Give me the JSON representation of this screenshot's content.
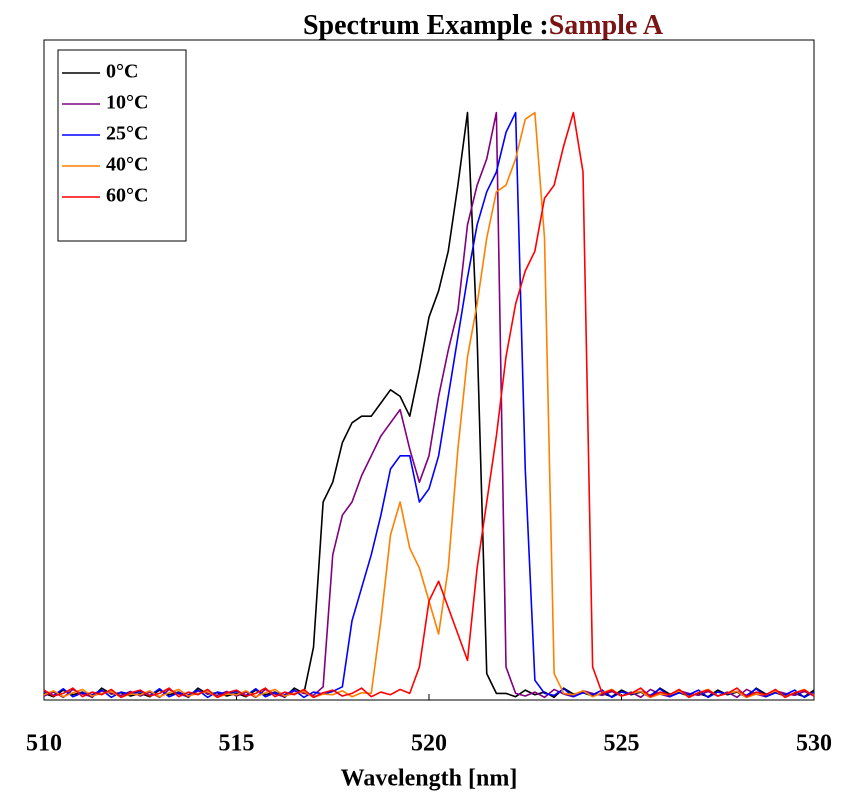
{
  "chart_data": {
    "type": "line",
    "title": "Spectrum Example :",
    "subtitle": "Sample A",
    "subtitle_color": "#7b1414",
    "xlabel": "Wavelength [nm]",
    "xlim": [
      510,
      530
    ],
    "xticks": [
      510,
      515,
      520,
      525,
      530
    ],
    "ylim": [
      0,
      1
    ],
    "legend": "upper left",
    "x": [
      510,
      510.25,
      510.5,
      510.75,
      511,
      511.25,
      511.5,
      511.75,
      512,
      512.25,
      512.5,
      512.75,
      513,
      513.25,
      513.5,
      513.75,
      514,
      514.25,
      514.5,
      514.75,
      515,
      515.25,
      515.5,
      515.75,
      516,
      516.25,
      516.5,
      516.75,
      517,
      517.25,
      517.5,
      517.75,
      518,
      518.25,
      518.5,
      518.75,
      519,
      519.25,
      519.5,
      519.75,
      520,
      520.25,
      520.5,
      520.75,
      521,
      521.25,
      521.5,
      521.75,
      522,
      522.25,
      522.5,
      522.75,
      523,
      523.25,
      523.5,
      523.75,
      524,
      524.25,
      524.5,
      524.75,
      525,
      525.25,
      525.5,
      525.75,
      526,
      526.25,
      526.5,
      526.75,
      527,
      527.25,
      527.5,
      527.75,
      528,
      528.25,
      528.5,
      528.75,
      529,
      529.25,
      529.5,
      529.75,
      530
    ],
    "series": [
      {
        "name": "0°C",
        "color": "#000000",
        "values": [
          0.01,
          0.005,
          0.015,
          0.008,
          0.012,
          0.004,
          0.018,
          0.009,
          0.011,
          0.006,
          0.01,
          0.005,
          0.015,
          0.008,
          0.012,
          0.004,
          0.018,
          0.009,
          0.011,
          0.006,
          0.01,
          0.005,
          0.015,
          0.008,
          0.012,
          0.004,
          0.018,
          0.01,
          0.08,
          0.3,
          0.33,
          0.39,
          0.42,
          0.43,
          0.43,
          0.45,
          0.47,
          0.46,
          0.43,
          0.5,
          0.58,
          0.62,
          0.68,
          0.78,
          0.89,
          0.55,
          0.04,
          0.01,
          0.01,
          0.005,
          0.015,
          0.008,
          0.012,
          0.004,
          0.018,
          0.009,
          0.011,
          0.006,
          0.01,
          0.005,
          0.015,
          0.008,
          0.012,
          0.004,
          0.018,
          0.009,
          0.011,
          0.006,
          0.01,
          0.005,
          0.015,
          0.008,
          0.012,
          0.004,
          0.018,
          0.009,
          0.011,
          0.006,
          0.01,
          0.005,
          0.015
        ]
      },
      {
        "name": "10°C",
        "color": "#800080",
        "values": [
          0.006,
          0.012,
          0.004,
          0.016,
          0.009,
          0.005,
          0.014,
          0.01,
          0.007,
          0.013,
          0.006,
          0.012,
          0.004,
          0.016,
          0.009,
          0.005,
          0.014,
          0.01,
          0.007,
          0.013,
          0.006,
          0.012,
          0.004,
          0.016,
          0.009,
          0.005,
          0.014,
          0.01,
          0.007,
          0.02,
          0.22,
          0.28,
          0.3,
          0.34,
          0.37,
          0.4,
          0.42,
          0.44,
          0.38,
          0.33,
          0.37,
          0.46,
          0.53,
          0.59,
          0.72,
          0.78,
          0.82,
          0.89,
          0.05,
          0.01,
          0.006,
          0.012,
          0.004,
          0.016,
          0.009,
          0.005,
          0.014,
          0.01,
          0.007,
          0.013,
          0.006,
          0.012,
          0.004,
          0.016,
          0.009,
          0.005,
          0.014,
          0.01,
          0.007,
          0.013,
          0.006,
          0.012,
          0.004,
          0.016,
          0.009,
          0.005,
          0.014,
          0.01,
          0.007,
          0.013,
          0.006
        ]
      },
      {
        "name": "25°C",
        "color": "#0000ff",
        "values": [
          0.013,
          0.007,
          0.017,
          0.005,
          0.011,
          0.008,
          0.015,
          0.004,
          0.012,
          0.009,
          0.013,
          0.007,
          0.017,
          0.005,
          0.011,
          0.008,
          0.015,
          0.004,
          0.012,
          0.009,
          0.013,
          0.007,
          0.017,
          0.005,
          0.011,
          0.008,
          0.015,
          0.004,
          0.012,
          0.009,
          0.013,
          0.02,
          0.12,
          0.17,
          0.22,
          0.28,
          0.35,
          0.37,
          0.37,
          0.3,
          0.32,
          0.37,
          0.46,
          0.55,
          0.64,
          0.72,
          0.77,
          0.8,
          0.86,
          0.89,
          0.35,
          0.03,
          0.01,
          0.007,
          0.017,
          0.005,
          0.011,
          0.008,
          0.015,
          0.004,
          0.012,
          0.009,
          0.013,
          0.007,
          0.017,
          0.005,
          0.011,
          0.008,
          0.015,
          0.004,
          0.012,
          0.009,
          0.013,
          0.007,
          0.017,
          0.005,
          0.011,
          0.008,
          0.015,
          0.004,
          0.012
        ]
      },
      {
        "name": "40°C",
        "color": "#ff8000",
        "values": [
          0.008,
          0.014,
          0.005,
          0.011,
          0.016,
          0.006,
          0.01,
          0.013,
          0.004,
          0.009,
          0.008,
          0.014,
          0.005,
          0.011,
          0.016,
          0.006,
          0.01,
          0.013,
          0.004,
          0.009,
          0.008,
          0.014,
          0.005,
          0.011,
          0.016,
          0.006,
          0.01,
          0.013,
          0.004,
          0.009,
          0.008,
          0.014,
          0.005,
          0.011,
          0.01,
          0.12,
          0.25,
          0.3,
          0.23,
          0.2,
          0.15,
          0.1,
          0.2,
          0.38,
          0.52,
          0.6,
          0.7,
          0.77,
          0.78,
          0.82,
          0.88,
          0.89,
          0.7,
          0.04,
          0.01,
          0.008,
          0.014,
          0.005,
          0.011,
          0.016,
          0.006,
          0.01,
          0.013,
          0.004,
          0.009,
          0.008,
          0.014,
          0.005,
          0.011,
          0.016,
          0.006,
          0.01,
          0.013,
          0.004,
          0.009,
          0.008,
          0.014,
          0.005,
          0.011,
          0.016,
          0.006
        ]
      },
      {
        "name": "60°C",
        "color": "#ff0000",
        "values": [
          0.015,
          0.006,
          0.01,
          0.018,
          0.005,
          0.012,
          0.008,
          0.016,
          0.004,
          0.011,
          0.015,
          0.006,
          0.01,
          0.018,
          0.005,
          0.012,
          0.008,
          0.016,
          0.004,
          0.011,
          0.015,
          0.006,
          0.01,
          0.018,
          0.005,
          0.012,
          0.008,
          0.016,
          0.004,
          0.011,
          0.015,
          0.006,
          0.01,
          0.018,
          0.005,
          0.012,
          0.008,
          0.016,
          0.01,
          0.05,
          0.15,
          0.18,
          0.14,
          0.1,
          0.06,
          0.2,
          0.3,
          0.4,
          0.52,
          0.6,
          0.65,
          0.68,
          0.76,
          0.78,
          0.84,
          0.89,
          0.8,
          0.05,
          0.01,
          0.015,
          0.006,
          0.01,
          0.018,
          0.005,
          0.012,
          0.008,
          0.016,
          0.004,
          0.011,
          0.015,
          0.006,
          0.01,
          0.018,
          0.005,
          0.012,
          0.008,
          0.016,
          0.004,
          0.011,
          0.015,
          0.006
        ]
      }
    ]
  }
}
